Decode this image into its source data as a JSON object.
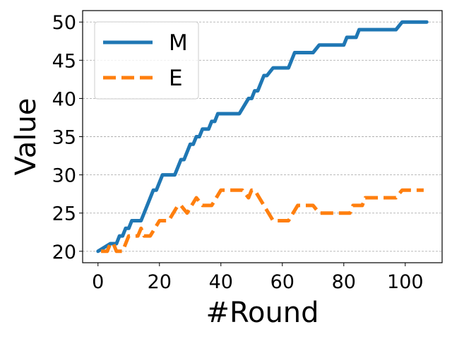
{
  "chart_data": {
    "type": "line",
    "xlabel": "#Round",
    "ylabel": "Value",
    "xlim": [
      -5,
      112
    ],
    "ylim": [
      18.5,
      51.5
    ],
    "xticks": [
      0,
      20,
      40,
      60,
      80,
      100
    ],
    "yticks": [
      20,
      25,
      30,
      35,
      40,
      45,
      50
    ],
    "grid": "horizontal dashed",
    "legend_position": "top-left",
    "series": [
      {
        "name": "M",
        "color": "#1f77b4",
        "style": "solid",
        "points": [
          [
            0,
            20
          ],
          [
            4,
            21
          ],
          [
            6,
            21
          ],
          [
            7,
            22
          ],
          [
            8,
            22
          ],
          [
            9,
            23
          ],
          [
            10,
            23
          ],
          [
            11,
            24
          ],
          [
            14,
            24
          ],
          [
            16,
            26
          ],
          [
            18,
            28
          ],
          [
            19,
            28
          ],
          [
            21,
            30
          ],
          [
            25,
            30
          ],
          [
            27,
            32
          ],
          [
            28,
            32
          ],
          [
            30,
            34
          ],
          [
            31,
            34
          ],
          [
            32,
            35
          ],
          [
            33,
            35
          ],
          [
            34,
            36
          ],
          [
            36,
            36
          ],
          [
            37,
            37
          ],
          [
            38,
            37
          ],
          [
            39,
            38
          ],
          [
            46,
            38
          ],
          [
            49,
            40
          ],
          [
            50,
            40
          ],
          [
            51,
            41
          ],
          [
            52,
            41
          ],
          [
            54,
            43
          ],
          [
            55,
            43
          ],
          [
            57,
            44
          ],
          [
            62,
            44
          ],
          [
            64,
            46
          ],
          [
            70,
            46
          ],
          [
            72,
            47
          ],
          [
            80,
            47
          ],
          [
            81,
            48
          ],
          [
            84,
            48
          ],
          [
            85,
            49
          ],
          [
            97,
            49
          ],
          [
            99,
            50
          ],
          [
            107,
            50
          ]
        ]
      },
      {
        "name": "E",
        "color": "#ff7f0e",
        "style": "dashed",
        "points": [
          [
            1,
            20
          ],
          [
            3,
            20
          ],
          [
            4,
            21
          ],
          [
            5,
            21
          ],
          [
            6,
            20
          ],
          [
            8,
            20
          ],
          [
            10,
            22
          ],
          [
            13,
            22
          ],
          [
            14,
            23
          ],
          [
            15,
            22
          ],
          [
            17,
            22
          ],
          [
            20,
            24
          ],
          [
            23,
            24
          ],
          [
            26,
            26
          ],
          [
            27,
            26
          ],
          [
            29,
            25
          ],
          [
            32,
            27
          ],
          [
            34,
            26
          ],
          [
            37,
            26
          ],
          [
            40,
            28
          ],
          [
            47,
            28
          ],
          [
            49,
            27
          ],
          [
            50,
            28
          ],
          [
            51,
            28
          ],
          [
            54,
            26
          ],
          [
            57,
            24
          ],
          [
            62,
            24
          ],
          [
            65,
            26
          ],
          [
            70,
            26
          ],
          [
            72,
            25
          ],
          [
            82,
            25
          ],
          [
            83,
            26
          ],
          [
            86,
            26
          ],
          [
            87,
            27
          ],
          [
            97,
            27
          ],
          [
            99,
            28
          ],
          [
            106,
            28
          ]
        ]
      }
    ]
  }
}
